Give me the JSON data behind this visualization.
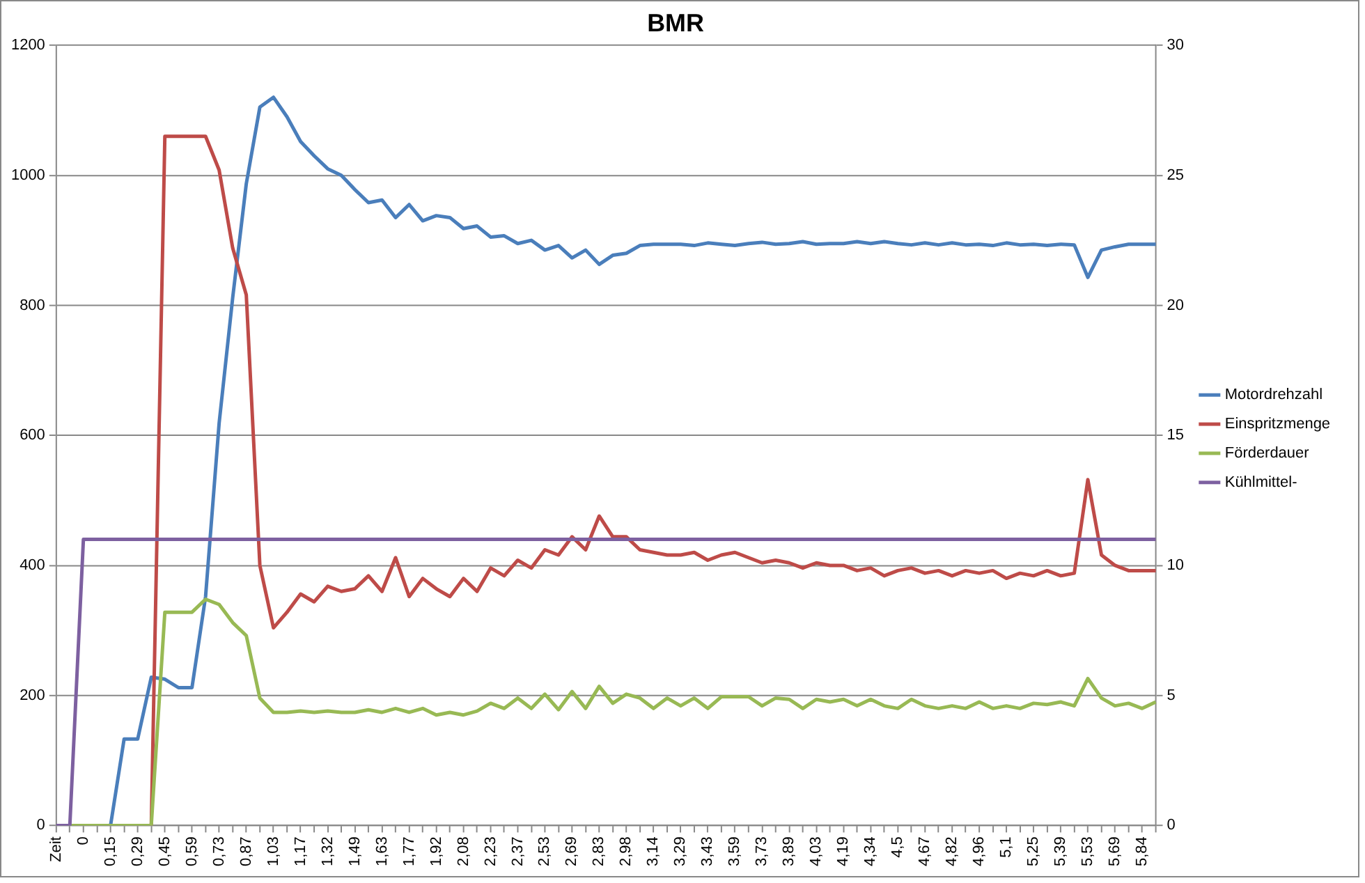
{
  "chart_data": {
    "type": "line",
    "title": "BMR",
    "categories": [
      "Zeit",
      null,
      "0",
      null,
      "0,15",
      null,
      "0,29",
      null,
      "0,45",
      null,
      "0,59",
      null,
      "0,73",
      null,
      "0,87",
      null,
      "1,03",
      null,
      "1,17",
      null,
      "1,32",
      null,
      "1,49",
      null,
      "1,63",
      null,
      "1,77",
      null,
      "1,92",
      null,
      "2,08",
      null,
      "2,23",
      null,
      "2,37",
      null,
      "2,53",
      null,
      "2,69",
      null,
      "2,83",
      null,
      "2,98",
      null,
      "3,14",
      null,
      "3,29",
      null,
      "3,43",
      null,
      "3,59",
      null,
      "3,73",
      null,
      "3,89",
      null,
      "4,03",
      null,
      "4,19",
      null,
      "4,34",
      null,
      "4,5",
      null,
      "4,67",
      null,
      "4,82",
      null,
      "4,96",
      null,
      "5,1",
      null,
      "5,25",
      null,
      "5,39",
      null,
      "5,53",
      null,
      "5,69",
      null,
      "5,84",
      null
    ],
    "series": [
      {
        "name": "Motordrehzahl",
        "color": "#4a7ebb",
        "values": [
          null,
          null,
          null,
          null,
          0,
          133,
          133,
          228,
          225,
          212,
          212,
          352,
          619,
          812,
          987,
          1105,
          1120,
          1090,
          1052,
          1030,
          1010,
          1000,
          978,
          958,
          962,
          935,
          955,
          930,
          938,
          935,
          918,
          922,
          905,
          907,
          895,
          900,
          885,
          892,
          873,
          885,
          863,
          877,
          880,
          892,
          894,
          894,
          894,
          892,
          896,
          894,
          892,
          895,
          897,
          894,
          895,
          898,
          894,
          895,
          895,
          898,
          895,
          898,
          895,
          893,
          896,
          893,
          896,
          893,
          894,
          892,
          896,
          893,
          894,
          892,
          894,
          893,
          843,
          885,
          890,
          894,
          894,
          894
        ]
      },
      {
        "name": "Einspritzmenge",
        "color": "#be4b48",
        "axis": "y2",
        "values": [
          null,
          null,
          null,
          null,
          null,
          null,
          null,
          0,
          26.5,
          26.5,
          26.5,
          26.5,
          25.2,
          22.2,
          20.4,
          10.0,
          7.6,
          8.2,
          8.9,
          8.6,
          9.2,
          9.0,
          9.1,
          9.6,
          9.0,
          10.3,
          8.8,
          9.5,
          9.1,
          8.8,
          9.5,
          9.0,
          9.9,
          9.6,
          10.2,
          9.9,
          10.6,
          10.4,
          11.1,
          10.6,
          11.9,
          11.1,
          11.1,
          10.6,
          10.5,
          10.4,
          10.4,
          10.5,
          10.2,
          10.4,
          10.5,
          10.3,
          10.1,
          10.2,
          10.1,
          9.9,
          10.1,
          10.0,
          10.0,
          9.8,
          9.9,
          9.6,
          9.8,
          9.9,
          9.7,
          9.8,
          9.6,
          9.8,
          9.7,
          9.8,
          9.5,
          9.7,
          9.6,
          9.8,
          9.6,
          9.7,
          13.3,
          10.4,
          10.0,
          9.8,
          9.8,
          9.8
        ]
      },
      {
        "name": "Förderdauer",
        "color": "#98b954",
        "axis": "y2",
        "values": [
          null,
          0,
          0,
          0,
          0,
          0,
          0,
          0,
          8.2,
          8.2,
          8.2,
          8.7,
          8.5,
          7.8,
          7.3,
          4.9,
          4.35,
          4.35,
          4.4,
          4.35,
          4.4,
          4.35,
          4.35,
          4.45,
          4.35,
          4.5,
          4.35,
          4.5,
          4.25,
          4.35,
          4.25,
          4.4,
          4.7,
          4.5,
          4.9,
          4.5,
          5.05,
          4.45,
          5.15,
          4.5,
          5.35,
          4.7,
          5.05,
          4.9,
          4.5,
          4.9,
          4.6,
          4.9,
          4.5,
          4.95,
          4.95,
          4.95,
          4.6,
          4.9,
          4.85,
          4.5,
          4.85,
          4.75,
          4.85,
          4.6,
          4.85,
          4.6,
          4.5,
          4.85,
          4.6,
          4.5,
          4.6,
          4.5,
          4.75,
          4.5,
          4.6,
          4.5,
          4.7,
          4.65,
          4.75,
          4.6,
          5.65,
          4.9,
          4.6,
          4.7,
          4.5,
          4.75
        ]
      },
      {
        "name": "Kühlmittel-",
        "color": "#7d60a0",
        "axis": "y2",
        "values": [
          0,
          0,
          11,
          11,
          11,
          11,
          11,
          11,
          11,
          11,
          11,
          11,
          11,
          11,
          11,
          11,
          11,
          11,
          11,
          11,
          11,
          11,
          11,
          11,
          11,
          11,
          11,
          11,
          11,
          11,
          11,
          11,
          11,
          11,
          11,
          11,
          11,
          11,
          11,
          11,
          11,
          11,
          11,
          11,
          11,
          11,
          11,
          11,
          11,
          11,
          11,
          11,
          11,
          11,
          11,
          11,
          11,
          11,
          11,
          11,
          11,
          11,
          11,
          11,
          11,
          11,
          11,
          11,
          11,
          11,
          11,
          11,
          11,
          11,
          11,
          11,
          11,
          11,
          11,
          11,
          11,
          11
        ]
      }
    ],
    "ylim": [
      0,
      1200
    ],
    "yticks": [
      0,
      200,
      400,
      600,
      800,
      1000,
      1200
    ],
    "y2lim": [
      0,
      30
    ],
    "y2ticks": [
      0,
      5,
      10,
      15,
      20,
      25,
      30
    ],
    "grid": "y",
    "legend": "right",
    "marker": "none",
    "line_style": "solid"
  }
}
